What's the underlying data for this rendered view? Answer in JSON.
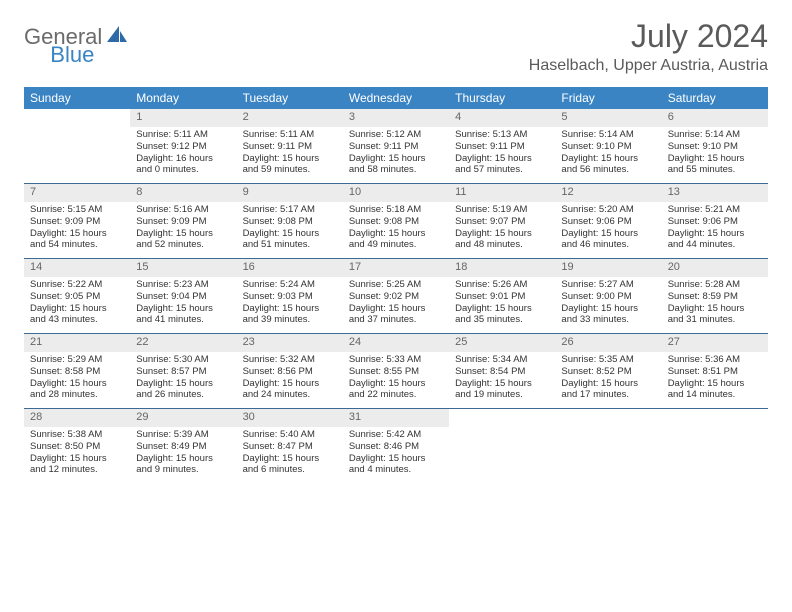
{
  "logo": {
    "text1": "General",
    "text2": "Blue"
  },
  "title": "July 2024",
  "location": "Haselbach, Upper Austria, Austria",
  "colors": {
    "header_blue": "#3b84c4",
    "row_divider": "#3b6a94",
    "daynum_bg": "#ececec",
    "text": "#333333",
    "title_gray": "#5a5a5a"
  },
  "weekdays": [
    "Sunday",
    "Monday",
    "Tuesday",
    "Wednesday",
    "Thursday",
    "Friday",
    "Saturday"
  ],
  "weeks": [
    [
      null,
      {
        "d": "1",
        "sr": "5:11 AM",
        "ss": "9:12 PM",
        "dl": "16 hours and 0 minutes."
      },
      {
        "d": "2",
        "sr": "5:11 AM",
        "ss": "9:11 PM",
        "dl": "15 hours and 59 minutes."
      },
      {
        "d": "3",
        "sr": "5:12 AM",
        "ss": "9:11 PM",
        "dl": "15 hours and 58 minutes."
      },
      {
        "d": "4",
        "sr": "5:13 AM",
        "ss": "9:11 PM",
        "dl": "15 hours and 57 minutes."
      },
      {
        "d": "5",
        "sr": "5:14 AM",
        "ss": "9:10 PM",
        "dl": "15 hours and 56 minutes."
      },
      {
        "d": "6",
        "sr": "5:14 AM",
        "ss": "9:10 PM",
        "dl": "15 hours and 55 minutes."
      }
    ],
    [
      {
        "d": "7",
        "sr": "5:15 AM",
        "ss": "9:09 PM",
        "dl": "15 hours and 54 minutes."
      },
      {
        "d": "8",
        "sr": "5:16 AM",
        "ss": "9:09 PM",
        "dl": "15 hours and 52 minutes."
      },
      {
        "d": "9",
        "sr": "5:17 AM",
        "ss": "9:08 PM",
        "dl": "15 hours and 51 minutes."
      },
      {
        "d": "10",
        "sr": "5:18 AM",
        "ss": "9:08 PM",
        "dl": "15 hours and 49 minutes."
      },
      {
        "d": "11",
        "sr": "5:19 AM",
        "ss": "9:07 PM",
        "dl": "15 hours and 48 minutes."
      },
      {
        "d": "12",
        "sr": "5:20 AM",
        "ss": "9:06 PM",
        "dl": "15 hours and 46 minutes."
      },
      {
        "d": "13",
        "sr": "5:21 AM",
        "ss": "9:06 PM",
        "dl": "15 hours and 44 minutes."
      }
    ],
    [
      {
        "d": "14",
        "sr": "5:22 AM",
        "ss": "9:05 PM",
        "dl": "15 hours and 43 minutes."
      },
      {
        "d": "15",
        "sr": "5:23 AM",
        "ss": "9:04 PM",
        "dl": "15 hours and 41 minutes."
      },
      {
        "d": "16",
        "sr": "5:24 AM",
        "ss": "9:03 PM",
        "dl": "15 hours and 39 minutes."
      },
      {
        "d": "17",
        "sr": "5:25 AM",
        "ss": "9:02 PM",
        "dl": "15 hours and 37 minutes."
      },
      {
        "d": "18",
        "sr": "5:26 AM",
        "ss": "9:01 PM",
        "dl": "15 hours and 35 minutes."
      },
      {
        "d": "19",
        "sr": "5:27 AM",
        "ss": "9:00 PM",
        "dl": "15 hours and 33 minutes."
      },
      {
        "d": "20",
        "sr": "5:28 AM",
        "ss": "8:59 PM",
        "dl": "15 hours and 31 minutes."
      }
    ],
    [
      {
        "d": "21",
        "sr": "5:29 AM",
        "ss": "8:58 PM",
        "dl": "15 hours and 28 minutes."
      },
      {
        "d": "22",
        "sr": "5:30 AM",
        "ss": "8:57 PM",
        "dl": "15 hours and 26 minutes."
      },
      {
        "d": "23",
        "sr": "5:32 AM",
        "ss": "8:56 PM",
        "dl": "15 hours and 24 minutes."
      },
      {
        "d": "24",
        "sr": "5:33 AM",
        "ss": "8:55 PM",
        "dl": "15 hours and 22 minutes."
      },
      {
        "d": "25",
        "sr": "5:34 AM",
        "ss": "8:54 PM",
        "dl": "15 hours and 19 minutes."
      },
      {
        "d": "26",
        "sr": "5:35 AM",
        "ss": "8:52 PM",
        "dl": "15 hours and 17 minutes."
      },
      {
        "d": "27",
        "sr": "5:36 AM",
        "ss": "8:51 PM",
        "dl": "15 hours and 14 minutes."
      }
    ],
    [
      {
        "d": "28",
        "sr": "5:38 AM",
        "ss": "8:50 PM",
        "dl": "15 hours and 12 minutes."
      },
      {
        "d": "29",
        "sr": "5:39 AM",
        "ss": "8:49 PM",
        "dl": "15 hours and 9 minutes."
      },
      {
        "d": "30",
        "sr": "5:40 AM",
        "ss": "8:47 PM",
        "dl": "15 hours and 6 minutes."
      },
      {
        "d": "31",
        "sr": "5:42 AM",
        "ss": "8:46 PM",
        "dl": "15 hours and 4 minutes."
      },
      null,
      null,
      null
    ]
  ],
  "labels": {
    "sunrise_prefix": "Sunrise: ",
    "sunset_prefix": "Sunset: ",
    "daylight_prefix": "Daylight: "
  }
}
